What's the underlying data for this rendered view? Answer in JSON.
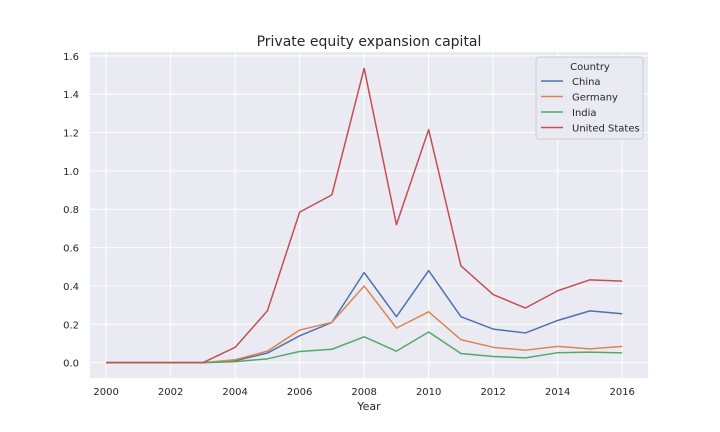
{
  "chart_data": {
    "type": "line",
    "title": "Private equity expansion capital",
    "xlabel": "Year",
    "ylabel": "",
    "x": [
      2000,
      2001,
      2002,
      2003,
      2004,
      2005,
      2006,
      2007,
      2008,
      2009,
      2010,
      2011,
      2012,
      2013,
      2014,
      2015,
      2016
    ],
    "xticks": [
      "2000",
      "2002",
      "2004",
      "2006",
      "2008",
      "2010",
      "2012",
      "2014",
      "2016"
    ],
    "yticks": [
      "0.0",
      "0.2",
      "0.4",
      "0.6",
      "0.8",
      "1.0",
      "1.2",
      "1.4",
      "1.6"
    ],
    "xlim": [
      1999.5,
      2016.8
    ],
    "ylim": [
      -0.08,
      1.62
    ],
    "grid": true,
    "legend": {
      "title": "Country",
      "placement": "top-right"
    },
    "series": [
      {
        "name": "China",
        "color": "#4c72b0",
        "values": [
          0,
          0,
          0,
          0,
          0.01,
          0.05,
          0.14,
          0.21,
          0.47,
          0.24,
          0.48,
          0.24,
          0.175,
          0.155,
          0.22,
          0.27,
          0.255
        ]
      },
      {
        "name": "Germany",
        "color": "#dd8452",
        "values": [
          0,
          0,
          0,
          0,
          0.015,
          0.06,
          0.17,
          0.21,
          0.4,
          0.18,
          0.265,
          0.12,
          0.08,
          0.065,
          0.085,
          0.072,
          0.085
        ]
      },
      {
        "name": "India",
        "color": "#55a868",
        "values": [
          0,
          0,
          0,
          0,
          0.005,
          0.02,
          0.058,
          0.07,
          0.135,
          0.06,
          0.16,
          0.048,
          0.032,
          0.025,
          0.052,
          0.055,
          0.051
        ]
      },
      {
        "name": "United States",
        "color": "#c44e52",
        "values": [
          0,
          0,
          0,
          0,
          0.08,
          0.27,
          0.785,
          0.875,
          1.535,
          0.72,
          1.215,
          0.505,
          0.355,
          0.285,
          0.375,
          0.432,
          0.425
        ]
      }
    ]
  }
}
